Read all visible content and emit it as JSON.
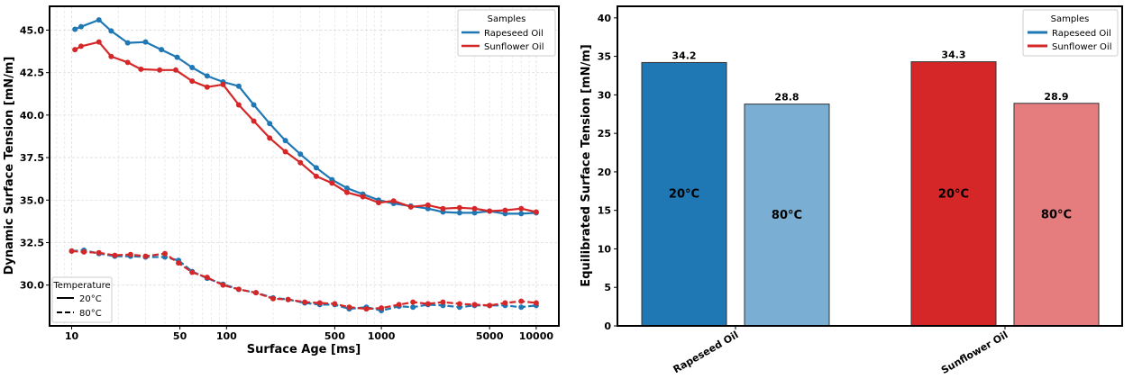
{
  "chart_data": [
    {
      "type": "line",
      "xlabel": "Surface Age [ms]",
      "ylabel": "Dynamic Surface Tension [mN/m]",
      "xscale": "log",
      "xlim": [
        7.2,
        14000
      ],
      "ylim": [
        27.6,
        46.4
      ],
      "xticks": [
        10,
        50,
        100,
        500,
        1000,
        5000,
        10000
      ],
      "xtick_labels": [
        "10",
        "50",
        "100",
        "500",
        "1000",
        "5000",
        "10000"
      ],
      "yticks": [
        30.0,
        32.5,
        35.0,
        37.5,
        40.0,
        42.5,
        45.0
      ],
      "ytick_labels": [
        "30.0",
        "32.5",
        "35.0",
        "37.5",
        "40.0",
        "42.5",
        "45.0"
      ],
      "grid": true,
      "legends": [
        {
          "title": "Samples",
          "placement": "top-right",
          "entries": [
            "Rapeseed Oil",
            "Sunflower Oil"
          ]
        },
        {
          "title": "Temperature",
          "placement": "bottom-left",
          "entries": [
            "20°C",
            "80°C"
          ]
        }
      ],
      "colors": {
        "Rapeseed Oil": "#1f77b4",
        "Sunflower Oil": "#d62728"
      },
      "series": [
        {
          "sample": "Rapeseed Oil",
          "temperature": "20°C",
          "style": "solid",
          "x": [
            10.5,
            11.5,
            15,
            18,
            23,
            30,
            38,
            48,
            60,
            75,
            95,
            120,
            150,
            190,
            240,
            300,
            380,
            480,
            600,
            760,
            960,
            1200,
            1550,
            2000,
            2500,
            3200,
            4000,
            5000,
            6300,
            8000,
            10000
          ],
          "y": [
            45.05,
            45.2,
            45.6,
            44.95,
            44.25,
            44.3,
            43.85,
            43.4,
            42.8,
            42.3,
            41.95,
            41.7,
            40.6,
            39.5,
            38.5,
            37.7,
            36.9,
            36.2,
            35.7,
            35.35,
            35.0,
            34.8,
            34.65,
            34.5,
            34.3,
            34.25,
            34.25,
            34.35,
            34.2,
            34.2,
            34.25
          ]
        },
        {
          "sample": "Sunflower Oil",
          "temperature": "20°C",
          "style": "solid",
          "x": [
            10.5,
            11.5,
            15,
            18,
            23,
            28,
            37,
            47,
            60,
            75,
            95,
            120,
            150,
            190,
            240,
            300,
            380,
            480,
            600,
            760,
            960,
            1200,
            1550,
            2000,
            2500,
            3200,
            4000,
            5000,
            6300,
            8000,
            10000
          ],
          "y": [
            43.85,
            44.05,
            44.3,
            43.45,
            43.1,
            42.7,
            42.65,
            42.65,
            42.0,
            41.65,
            41.8,
            40.6,
            39.65,
            38.65,
            37.85,
            37.2,
            36.4,
            36.0,
            35.45,
            35.2,
            34.85,
            34.95,
            34.6,
            34.7,
            34.5,
            34.55,
            34.5,
            34.35,
            34.4,
            34.5,
            34.3
          ]
        },
        {
          "sample": "Rapeseed Oil",
          "temperature": "80°C",
          "style": "dashed",
          "x": [
            10,
            12,
            15,
            19,
            24,
            30,
            40,
            49,
            60,
            75,
            95,
            120,
            155,
            200,
            250,
            320,
            400,
            500,
            620,
            800,
            1000,
            1300,
            1600,
            2000,
            2500,
            3200,
            4000,
            5000,
            6300,
            8000,
            10000
          ],
          "y": [
            32.0,
            32.05,
            31.85,
            31.7,
            31.7,
            31.65,
            31.65,
            31.45,
            30.8,
            30.4,
            30.05,
            29.75,
            29.55,
            29.25,
            29.15,
            28.95,
            28.85,
            28.85,
            28.6,
            28.7,
            28.5,
            28.75,
            28.7,
            28.85,
            28.8,
            28.7,
            28.8,
            28.8,
            28.8,
            28.7,
            28.8
          ]
        },
        {
          "sample": "Sunflower Oil",
          "temperature": "80°C",
          "style": "dashed",
          "x": [
            10,
            12,
            15,
            19,
            24,
            30,
            40,
            49,
            60,
            75,
            95,
            120,
            155,
            200,
            250,
            320,
            400,
            500,
            620,
            800,
            1000,
            1300,
            1600,
            2000,
            2500,
            3200,
            4000,
            5000,
            6300,
            8000,
            10000
          ],
          "y": [
            32.0,
            31.95,
            31.9,
            31.75,
            31.8,
            31.7,
            31.85,
            31.3,
            30.75,
            30.45,
            30.0,
            29.75,
            29.55,
            29.2,
            29.15,
            29.0,
            28.95,
            28.9,
            28.7,
            28.6,
            28.65,
            28.85,
            29.0,
            28.9,
            29.0,
            28.9,
            28.85,
            28.8,
            28.95,
            29.05,
            28.95
          ]
        }
      ]
    },
    {
      "type": "bar",
      "ylabel": "Equilibrated Surface Tension [mN/m]",
      "categories": [
        "Rapeseed Oil",
        "Sunflower Oil"
      ],
      "ylim": [
        0,
        41.5
      ],
      "yticks": [
        0,
        5,
        10,
        15,
        20,
        25,
        30,
        35,
        40
      ],
      "ytick_labels": [
        "0",
        "5",
        "10",
        "15",
        "20",
        "25",
        "30",
        "35",
        "40"
      ],
      "grid": false,
      "legend": {
        "title": "Samples",
        "placement": "top-right",
        "entries": [
          "Rapeseed Oil",
          "Sunflower Oil"
        ]
      },
      "bars": [
        {
          "category": "Rapeseed Oil",
          "temperature": "20°C",
          "value": 34.2,
          "label": "34.2",
          "color": "#1f77b4"
        },
        {
          "category": "Rapeseed Oil",
          "temperature": "80°C",
          "value": 28.8,
          "label": "28.8",
          "color": "#7aafd3"
        },
        {
          "category": "Sunflower Oil",
          "temperature": "20°C",
          "value": 34.3,
          "label": "34.3",
          "color": "#d62728"
        },
        {
          "category": "Sunflower Oil",
          "temperature": "80°C",
          "value": 28.9,
          "label": "28.9",
          "color": "#e57d7e"
        }
      ]
    }
  ]
}
